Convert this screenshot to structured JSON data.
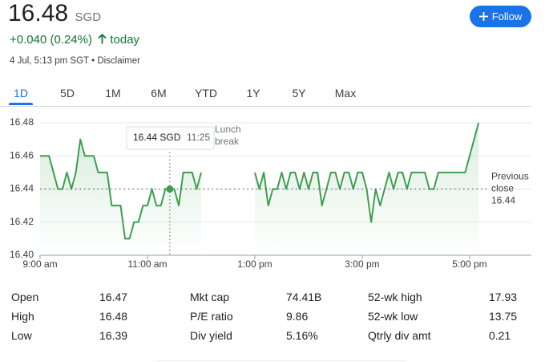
{
  "header": {
    "price": "16.48",
    "currency": "SGD",
    "change": "+0.040 (0.24%)",
    "period": "today",
    "timestamp": "4 Jul, 5:13 pm SGT",
    "separator": "•",
    "disclaimer": "Disclaimer",
    "follow": "Follow"
  },
  "tabs": {
    "items": [
      "1D",
      "5D",
      "1M",
      "6M",
      "YTD",
      "1Y",
      "5Y",
      "Max"
    ],
    "active": 0
  },
  "chart_data": {
    "type": "line",
    "x": [
      540,
      545,
      550,
      555,
      560,
      565,
      570,
      575,
      580,
      585,
      590,
      595,
      600,
      605,
      610,
      615,
      620,
      625,
      630,
      635,
      640,
      645,
      650,
      655,
      660,
      665,
      670,
      675,
      680,
      685,
      690,
      695,
      700,
      705,
      710,
      715,
      720,
      750,
      780,
      785,
      790,
      795,
      800,
      805,
      810,
      815,
      820,
      825,
      830,
      835,
      840,
      845,
      850,
      855,
      860,
      865,
      870,
      875,
      880,
      885,
      890,
      895,
      900,
      905,
      910,
      915,
      920,
      925,
      930,
      935,
      940,
      945,
      950,
      955,
      960,
      965,
      970,
      975,
      980,
      985,
      990,
      995,
      1000,
      1005,
      1010,
      1015,
      1020,
      1025,
      1030
    ],
    "series": [
      {
        "name": "SGD",
        "color": "#3c9f4e",
        "values": [
          16.46,
          16.46,
          16.46,
          16.45,
          16.44,
          16.44,
          16.45,
          16.44,
          16.45,
          16.47,
          16.46,
          16.46,
          16.46,
          16.45,
          16.45,
          16.45,
          16.43,
          16.43,
          16.43,
          16.41,
          16.41,
          16.42,
          16.42,
          16.43,
          16.43,
          16.44,
          16.43,
          16.43,
          16.44,
          16.44,
          16.44,
          16.43,
          16.45,
          16.45,
          16.45,
          16.44,
          16.45,
          null,
          16.45,
          16.44,
          16.45,
          16.43,
          16.44,
          16.44,
          16.45,
          16.44,
          16.45,
          16.45,
          16.44,
          16.45,
          16.44,
          16.45,
          16.45,
          16.43,
          16.44,
          16.45,
          16.45,
          16.44,
          16.45,
          16.45,
          16.44,
          16.45,
          16.45,
          16.44,
          16.42,
          16.44,
          16.43,
          16.44,
          16.45,
          16.44,
          16.45,
          16.45,
          16.44,
          16.45,
          16.45,
          16.45,
          16.45,
          16.44,
          16.44,
          16.45,
          16.45,
          16.45,
          16.45,
          16.45,
          16.45,
          16.45,
          16.46,
          16.47,
          16.48
        ]
      }
    ],
    "xlim": [
      540,
      1089
    ],
    "xticks": [
      {
        "value": 540,
        "label": "9:00 am"
      },
      {
        "value": 660,
        "label": "11:00 am"
      },
      {
        "value": 780,
        "label": "1:00 pm"
      },
      {
        "value": 900,
        "label": "3:00 pm"
      },
      {
        "value": 1020,
        "label": "5:00 pm"
      }
    ],
    "ylim": [
      16.4,
      16.48
    ],
    "yticks": [
      16.48,
      16.46,
      16.44,
      16.42,
      {
        "value": 16.4,
        "label": "16.40"
      }
    ],
    "grid": true,
    "previous_close": 16.44,
    "previous_close_label": [
      "Previous",
      "close"
    ],
    "lunch_label": [
      "Lunch",
      "break"
    ],
    "tooltip": {
      "index": 29,
      "price": "16.44 SGD",
      "time": "11:25"
    }
  },
  "stats": {
    "rows": [
      [
        [
          "Open",
          "16.47"
        ],
        [
          "Mkt cap",
          "74.41B"
        ],
        [
          "52-wk high",
          "17.93"
        ]
      ],
      [
        [
          "High",
          "16.48"
        ],
        [
          "P/E ratio",
          "9.86"
        ],
        [
          "52-wk low",
          "13.75"
        ]
      ],
      [
        [
          "Low",
          "16.39"
        ],
        [
          "Div yield",
          "5.16%"
        ],
        [
          "Qtrly div amt",
          "0.21"
        ]
      ]
    ]
  }
}
